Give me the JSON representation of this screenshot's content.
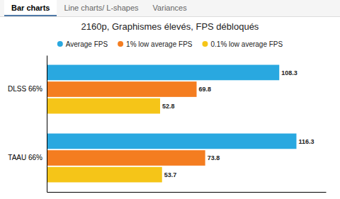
{
  "tabs": [
    "Bar charts",
    "Line charts/ L-shapes",
    "Variances"
  ],
  "active_tab": "Bar charts",
  "chart_data": {
    "type": "bar",
    "orientation": "horizontal",
    "title": "2160p, Graphismes élevés, FPS débloqués",
    "categories": [
      "TAAU 66%",
      "DLSS 66%"
    ],
    "series": [
      {
        "name": "Average FPS",
        "color": "#29a8e0",
        "values": [
          116.3,
          108.3
        ]
      },
      {
        "name": "1% low average FPS",
        "color": "#f47d20",
        "values": [
          73.8,
          69.8
        ]
      },
      {
        "name": "0.1% low average FPS",
        "color": "#f5c518",
        "values": [
          53.7,
          52.8
        ]
      }
    ],
    "xlim": [
      0,
      130
    ],
    "data_labels": true,
    "tick_labels": "y",
    "grid": false,
    "legend": "top"
  }
}
